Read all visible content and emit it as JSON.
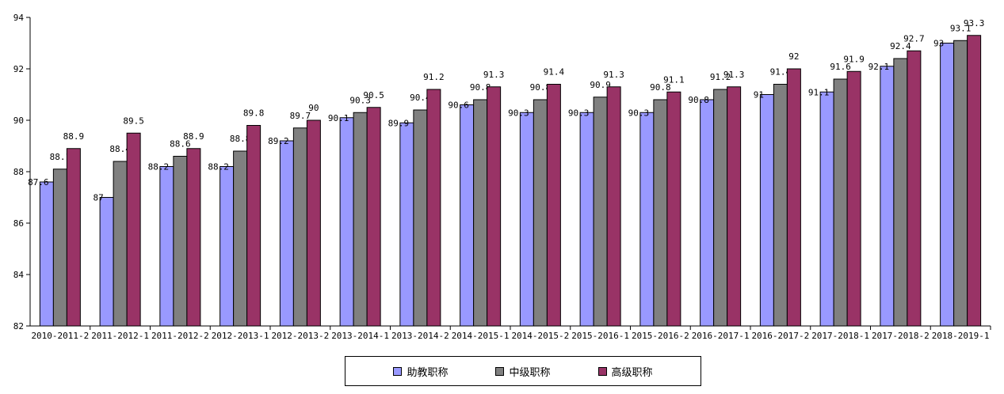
{
  "chart_data": {
    "type": "bar",
    "title": "",
    "xlabel": "",
    "ylabel": "",
    "ylim": [
      82,
      94
    ],
    "yticks": [
      82,
      84,
      86,
      88,
      90,
      92,
      94
    ],
    "legend_position": "bottom",
    "categories": [
      "2010-2011-2",
      "2011-2012-1",
      "2011-2012-2",
      "2012-2013-1",
      "2012-2013-2",
      "2013-2014-1",
      "2013-2014-2",
      "2014-2015-1",
      "2014-2015-2",
      "2015-2016-1",
      "2015-2016-2",
      "2016-2017-1",
      "2016-2017-2",
      "2017-2018-1",
      "2017-2018-2",
      "2018-2019-1"
    ],
    "series": [
      {
        "name": "助教职称",
        "color": "#9999FF",
        "values": [
          87.6,
          87,
          88.2,
          88.2,
          89.2,
          90.1,
          89.9,
          90.6,
          90.3,
          90.3,
          90.3,
          90.8,
          91,
          91.1,
          92.1,
          93
        ]
      },
      {
        "name": "中级职称",
        "color": "#808080",
        "values": [
          88.1,
          88.4,
          88.6,
          88.8,
          89.7,
          90.3,
          90.4,
          90.8,
          90.8,
          90.9,
          90.8,
          91.2,
          91.4,
          91.6,
          92.4,
          93.1
        ]
      },
      {
        "name": "高级职称",
        "color": "#993366",
        "values": [
          88.9,
          89.5,
          88.9,
          89.8,
          90,
          90.5,
          91.2,
          91.3,
          91.4,
          91.3,
          91.1,
          91.3,
          92,
          91.9,
          92.7,
          93.3
        ]
      }
    ]
  }
}
